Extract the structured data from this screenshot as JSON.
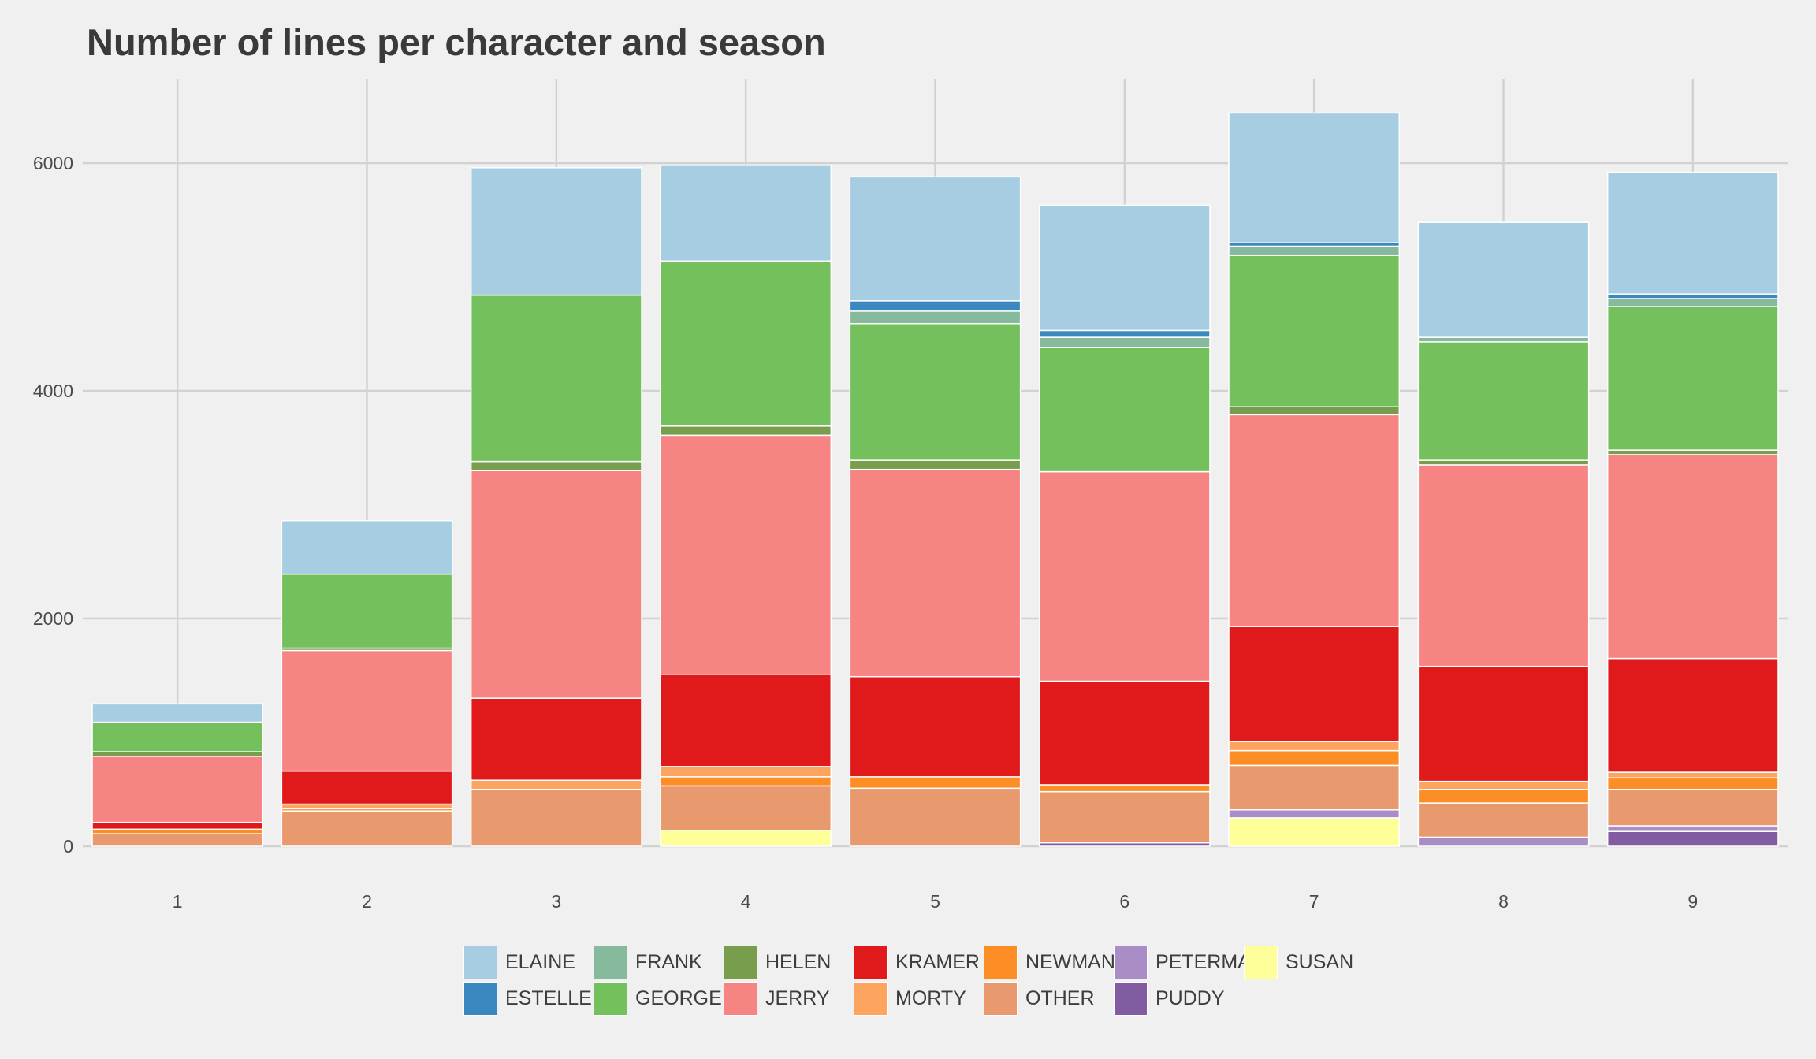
{
  "chart_data": {
    "type": "bar",
    "stacked": true,
    "title": "Number of lines per character and season",
    "xlabel": "",
    "ylabel": "",
    "ylim": [
      0,
      6800
    ],
    "yticks": [
      0,
      2000,
      4000,
      6000
    ],
    "grid": true,
    "legend_position": "bottom",
    "categories": [
      "1",
      "2",
      "3",
      "4",
      "5",
      "6",
      "7",
      "8",
      "9"
    ],
    "series": [
      {
        "name": "SUSAN",
        "color": "#ffff99",
        "values": [
          0,
          0,
          0,
          140,
          0,
          0,
          250,
          0,
          0
        ]
      },
      {
        "name": "PUDDY",
        "color": "#825ca0",
        "values": [
          0,
          0,
          0,
          0,
          0,
          30,
          0,
          0,
          130
        ]
      },
      {
        "name": "PETERMAN",
        "color": "#aa8cc7",
        "values": [
          0,
          0,
          0,
          0,
          0,
          0,
          70,
          80,
          50
        ]
      },
      {
        "name": "OTHER",
        "color": "#e8996d",
        "values": [
          110,
          310,
          500,
          390,
          510,
          450,
          390,
          300,
          320
        ]
      },
      {
        "name": "NEWMAN",
        "color": "#fd8e26",
        "values": [
          40,
          20,
          0,
          80,
          100,
          60,
          130,
          120,
          100
        ]
      },
      {
        "name": "MORTY",
        "color": "#fca561",
        "values": [
          0,
          40,
          80,
          90,
          0,
          0,
          80,
          70,
          50
        ]
      },
      {
        "name": "KRAMER",
        "color": "#e0191b",
        "values": [
          60,
          290,
          720,
          810,
          880,
          910,
          1010,
          1010,
          1000
        ]
      },
      {
        "name": "JERRY",
        "color": "#f68483",
        "values": [
          580,
          1060,
          2000,
          2100,
          1820,
          1840,
          1860,
          1770,
          1790
        ]
      },
      {
        "name": "HELEN",
        "color": "#789d4d",
        "values": [
          40,
          20,
          80,
          80,
          80,
          0,
          70,
          40,
          40
        ]
      },
      {
        "name": "GEORGE",
        "color": "#74c05c",
        "values": [
          260,
          650,
          1460,
          1450,
          1200,
          1090,
          1330,
          1040,
          1260
        ]
      },
      {
        "name": "FRANK",
        "color": "#85bb9c",
        "values": [
          0,
          0,
          0,
          0,
          110,
          90,
          80,
          40,
          70
        ]
      },
      {
        "name": "ESTELLE",
        "color": "#3a88bf",
        "values": [
          0,
          0,
          0,
          0,
          90,
          60,
          30,
          0,
          40
        ]
      },
      {
        "name": "ELAINE",
        "color": "#a6cde2",
        "values": [
          160,
          470,
          1120,
          840,
          1090,
          1100,
          1140,
          1010,
          1070
        ]
      }
    ],
    "legend": {
      "rows": [
        [
          "ELAINE",
          "FRANK",
          "HELEN",
          "KRAMER",
          "NEWMAN",
          "PETERMAN",
          "SUSAN"
        ],
        [
          "ESTELLE",
          "GEORGE",
          "JERRY",
          "MORTY",
          "OTHER",
          "PUDDY"
        ]
      ]
    }
  }
}
